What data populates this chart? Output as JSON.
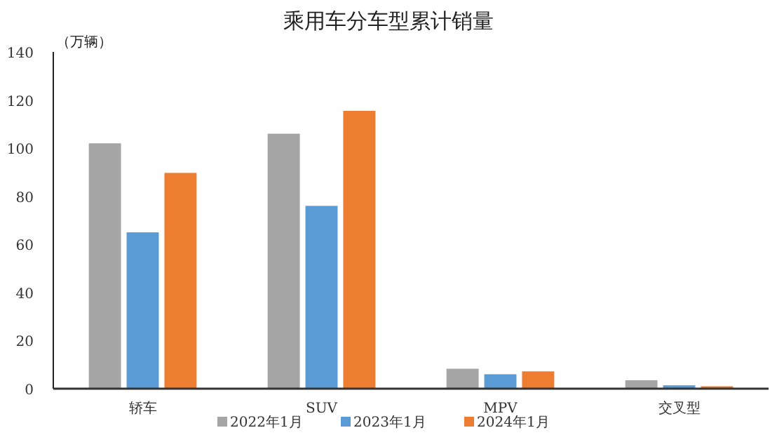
{
  "chart_data": {
    "type": "bar",
    "title": "乘用车分车型累计销量",
    "ylabel": "（万辆）",
    "categories": [
      "轿车",
      "SUV",
      "MPV",
      "交叉型"
    ],
    "series": [
      {
        "name": "2022年1月",
        "color": "#a5a5a5",
        "values": [
          102,
          106,
          8.3,
          3.5
        ]
      },
      {
        "name": "2023年1月",
        "color": "#5b9bd5",
        "values": [
          65,
          76,
          6,
          1.4
        ]
      },
      {
        "name": "2024年1月",
        "color": "#ed7d31",
        "values": [
          89.7,
          115.5,
          7.2,
          1.0
        ]
      }
    ],
    "ylim": [
      0,
      140
    ],
    "yticks": [
      0,
      20,
      40,
      60,
      80,
      100,
      120,
      140
    ],
    "grid": false,
    "legend": "bottom"
  }
}
